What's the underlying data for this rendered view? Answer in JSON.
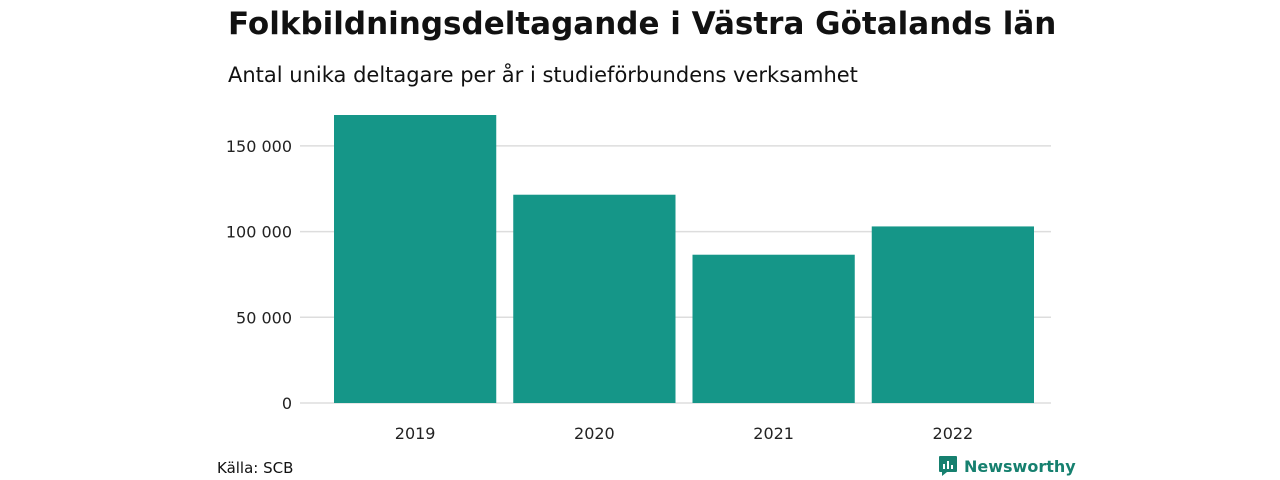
{
  "header": {
    "title": "Folkbildningsdeltagande i Västra Götalands län",
    "subtitle": "Antal unika deltagare per år i studieförbundens verksamhet"
  },
  "footer": {
    "source": "Källa: SCB",
    "brand": "Newsworthy"
  },
  "colors": {
    "bar": "#159688",
    "grid": "#dddddd",
    "brand": "#16806f"
  },
  "icons": {
    "brand": "newsworthy-logo-icon"
  },
  "chart_data": {
    "type": "bar",
    "categories": [
      "2019",
      "2020",
      "2021",
      "2022"
    ],
    "values": [
      168000,
      121500,
      86500,
      103000
    ],
    "ylim": [
      0,
      175000
    ],
    "yticks": [
      0,
      50000,
      100000,
      150000
    ],
    "ytick_labels": [
      "0",
      "50 000",
      "100 000",
      "150 000"
    ],
    "grid": true,
    "legend": "none"
  }
}
